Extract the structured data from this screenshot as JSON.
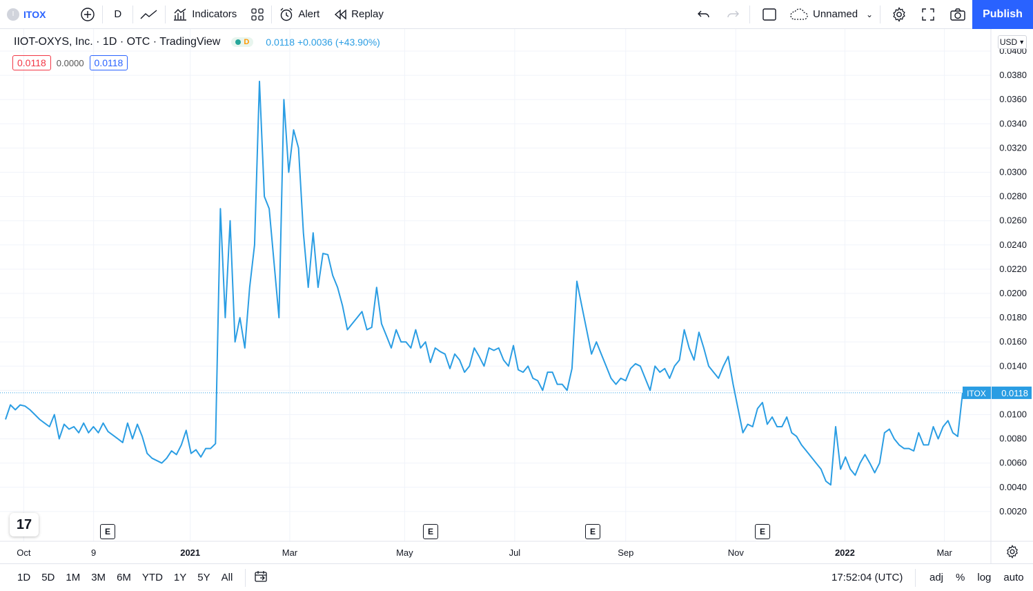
{
  "toolbar": {
    "symbol": "ITOX",
    "symbol_initial": "I",
    "interval": "D",
    "indicators_label": "Indicators",
    "alert_label": "Alert",
    "replay_label": "Replay",
    "layout_name": "Unnamed",
    "publish_label": "Publish"
  },
  "legend": {
    "title": "IIOT-OXYS, Inc. · 1D · OTC · TradingView",
    "badge_letter": "D",
    "last_change": "0.0118 +0.0036 (+43.90%)",
    "open_box": "0.0118",
    "mid_value": "0.0000",
    "close_box": "0.0118"
  },
  "currency": "USD",
  "price_label": {
    "symbol": "ITOX",
    "value": "0.0118"
  },
  "colors": {
    "line": "#2a9de3",
    "accent": "#2962ff",
    "grid": "#f0f3fa"
  },
  "chart_data": {
    "type": "line",
    "title": "IIOT-OXYS, Inc. · 1D · OTC · TradingView",
    "series": [
      {
        "values": [
          0.0096,
          0.0108,
          0.0104,
          0.0108,
          0.0107,
          0.0104,
          0.01,
          0.0096,
          0.0093,
          0.009,
          0.01,
          0.008,
          0.0092,
          0.0088,
          0.009,
          0.0085,
          0.0093,
          0.0085,
          0.009,
          0.0085,
          0.0093,
          0.0086,
          0.0083,
          0.008,
          0.0077,
          0.0093,
          0.008,
          0.0092,
          0.0082,
          0.0068,
          0.0064,
          0.0062,
          0.006,
          0.0064,
          0.007,
          0.0067,
          0.0075,
          0.0087,
          0.0068,
          0.0071,
          0.0065,
          0.0072,
          0.0072,
          0.0076,
          0.027,
          0.018,
          0.026,
          0.016,
          0.018,
          0.0155,
          0.0205,
          0.024,
          0.0375,
          0.028,
          0.027,
          0.0225,
          0.018,
          0.036,
          0.03,
          0.0335,
          0.032,
          0.025,
          0.0205,
          0.025,
          0.0205,
          0.0233,
          0.0232,
          0.0215,
          0.0205,
          0.019,
          0.017,
          0.0175,
          0.018,
          0.0185,
          0.017,
          0.0172,
          0.0205,
          0.0175,
          0.0165,
          0.0155,
          0.017,
          0.016,
          0.016,
          0.0155,
          0.017,
          0.0155,
          0.016,
          0.0143,
          0.0155,
          0.0152,
          0.015,
          0.0138,
          0.015,
          0.0145,
          0.0135,
          0.014,
          0.0155,
          0.0148,
          0.014,
          0.0155,
          0.0153,
          0.0155,
          0.0145,
          0.014,
          0.0157,
          0.0137,
          0.0135,
          0.014,
          0.013,
          0.0128,
          0.012,
          0.0135,
          0.0135,
          0.0125,
          0.0125,
          0.012,
          0.0138,
          0.021,
          0.019,
          0.017,
          0.015,
          0.016,
          0.015,
          0.014,
          0.013,
          0.0125,
          0.013,
          0.0128,
          0.0138,
          0.0142,
          0.014,
          0.013,
          0.012,
          0.014,
          0.0135,
          0.0138,
          0.013,
          0.014,
          0.0145,
          0.017,
          0.0155,
          0.0145,
          0.0168,
          0.0155,
          0.014,
          0.0135,
          0.013,
          0.014,
          0.0148,
          0.0125,
          0.0105,
          0.0085,
          0.0092,
          0.009,
          0.0105,
          0.011,
          0.0092,
          0.0098,
          0.009,
          0.009,
          0.0098,
          0.0085,
          0.0082,
          0.0075,
          0.007,
          0.0065,
          0.006,
          0.0055,
          0.0045,
          0.0042,
          0.009,
          0.0055,
          0.0065,
          0.0055,
          0.005,
          0.006,
          0.0067,
          0.006,
          0.0052,
          0.006,
          0.0085,
          0.0088,
          0.008,
          0.0075,
          0.0072,
          0.0072,
          0.007,
          0.0085,
          0.0075,
          0.0075,
          0.009,
          0.008,
          0.009,
          0.0095,
          0.0085,
          0.0082,
          0.0118
        ]
      }
    ],
    "x_tick_labels": [
      "Oct",
      "9",
      "2021",
      "Mar",
      "May",
      "Jul",
      "Sep",
      "Nov",
      "2022",
      "Mar"
    ],
    "y_tick_labels": [
      "0.0400",
      "0.0380",
      "0.0360",
      "0.0340",
      "0.0320",
      "0.0300",
      "0.0280",
      "0.0260",
      "0.0240",
      "0.0220",
      "0.0200",
      "0.0180",
      "0.0160",
      "0.0140",
      "0.0120",
      "0.0100",
      "0.0080",
      "0.0060",
      "0.0040",
      "0.0020"
    ],
    "ylim": [
      0.0,
      0.04
    ],
    "last_value": 0.0118,
    "grid": true,
    "xlabel": "",
    "ylabel": ""
  },
  "earnings_marker": "E",
  "bottom": {
    "ranges": [
      "1D",
      "5D",
      "1M",
      "3M",
      "6M",
      "YTD",
      "1Y",
      "5Y",
      "All"
    ],
    "time": "17:52:04 (UTC)",
    "right_buttons": [
      "adj",
      "%",
      "log",
      "auto"
    ]
  },
  "logo_text": "17"
}
